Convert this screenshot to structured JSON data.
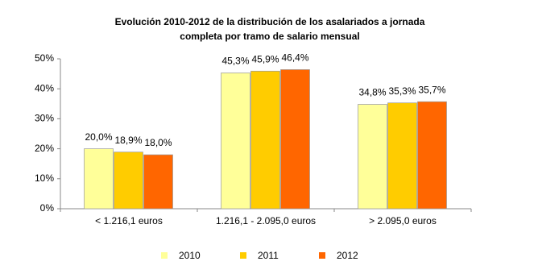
{
  "chart_data": {
    "type": "bar",
    "title": [
      "Evolución 2010-2012 de la distribución de los asalariados a jornada",
      "completa por tramo  de salario mensual"
    ],
    "categories": [
      "< 1.216,1 euros",
      "1.216,1 - 2.095,0 euros",
      "> 2.095,0 euros"
    ],
    "series": [
      {
        "name": "2010",
        "color": "#ffff99",
        "values": [
          20.0,
          45.3,
          34.8
        ],
        "value_labels": [
          "20,0%",
          "45,3%",
          "34,8%"
        ]
      },
      {
        "name": "2011",
        "color": "#ffcc00",
        "values": [
          18.9,
          45.9,
          35.3
        ],
        "value_labels": [
          "18,9%",
          "45,9%",
          "35,3%"
        ]
      },
      {
        "name": "2012",
        "color": "#ff6600",
        "values": [
          18.0,
          46.4,
          35.7
        ],
        "value_labels": [
          "18,0%",
          "46,4%",
          "35,7%"
        ]
      }
    ],
    "ylim": [
      0,
      50
    ],
    "yticks": [
      {
        "value": 0,
        "label": "0%"
      },
      {
        "value": 10,
        "label": "10%"
      },
      {
        "value": 20,
        "label": "20%"
      },
      {
        "value": 30,
        "label": "30%"
      },
      {
        "value": 40,
        "label": "40%"
      },
      {
        "value": 50,
        "label": "50%"
      }
    ],
    "grid": false,
    "legend": "bottom"
  }
}
